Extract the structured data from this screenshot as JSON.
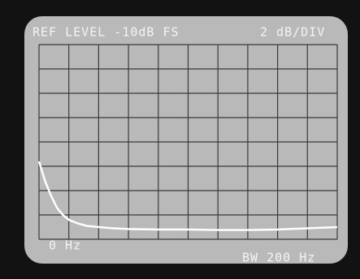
{
  "chart_data": {
    "type": "line",
    "title": "REF LEVEL -10dB FS",
    "scale_label": "2 dB/DIV",
    "x_start_label": "0 Hz",
    "bandwidth_label": "BW 200 Hz",
    "xlim": [
      0,
      10
    ],
    "ylim": [
      0,
      8
    ],
    "x": [
      0,
      0.1,
      0.2,
      0.4,
      0.6,
      0.8,
      1,
      1.3,
      1.6,
      2,
      2.5,
      3,
      4,
      5,
      6,
      7,
      8,
      9,
      10
    ],
    "series": [
      {
        "color": "#ffffff",
        "values": [
          3.2,
          2.8,
          2.4,
          1.8,
          1.3,
          1.0,
          0.8,
          0.65,
          0.55,
          0.5,
          0.45,
          0.42,
          0.4,
          0.4,
          0.38,
          0.38,
          0.4,
          0.45,
          0.5
        ]
      }
    ]
  }
}
